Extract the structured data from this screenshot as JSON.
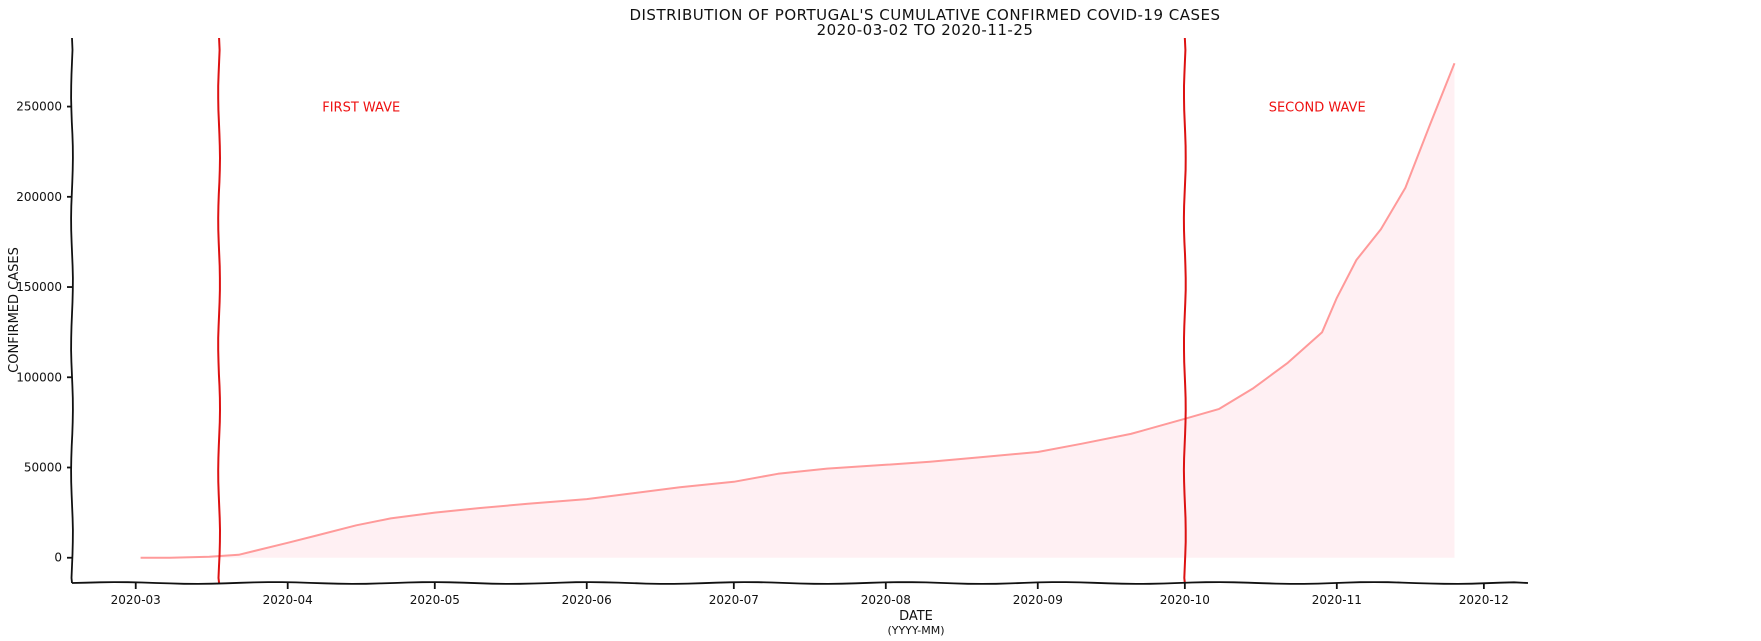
{
  "chart_data": {
    "type": "area",
    "title": "DISTRIBUTION OF PORTUGAL'S CUMULATIVE CONFIRMED COVID-19 CASES",
    "subtitle": "2020-03-02 TO 2020-11-25",
    "xlabel": "DATE",
    "xlabel_sub": "(YYYY-MM)",
    "ylabel": "CONFIRMED CASES",
    "xlim": [
      "2020-02-17",
      "2020-12-10"
    ],
    "ylim": [
      -14000,
      288000
    ],
    "x_ticks": [
      "2020-03-01",
      "2020-04-01",
      "2020-05-01",
      "2020-06-01",
      "2020-07-01",
      "2020-08-01",
      "2020-09-01",
      "2020-10-01",
      "2020-11-01",
      "2020-12-01"
    ],
    "x_tick_labels": [
      "2020-03",
      "2020-04",
      "2020-05",
      "2020-06",
      "2020-07",
      "2020-08",
      "2020-09",
      "2020-10",
      "2020-11",
      "2020-12"
    ],
    "y_ticks": [
      0,
      50000,
      100000,
      150000,
      200000,
      250000
    ],
    "y_tick_labels": [
      "0",
      "50000",
      "100000",
      "150000",
      "200000",
      "250000"
    ],
    "grid": false,
    "colors": {
      "line": "#ff9a9a",
      "fill": "#fff0f3",
      "wave_line": "#dd1111",
      "wave_text": "#ee1111",
      "axis": "#111111"
    },
    "series": [
      {
        "x": [
          "2020-03-02",
          "2020-03-08",
          "2020-03-16",
          "2020-03-22",
          "2020-03-26",
          "2020-04-01",
          "2020-04-07",
          "2020-04-15",
          "2020-04-22",
          "2020-05-01",
          "2020-05-10",
          "2020-05-20",
          "2020-06-01",
          "2020-06-10",
          "2020-06-20",
          "2020-07-01",
          "2020-07-10",
          "2020-07-20",
          "2020-08-01",
          "2020-08-10",
          "2020-08-20",
          "2020-09-01",
          "2020-09-10",
          "2020-09-20",
          "2020-10-01",
          "2020-10-08",
          "2020-10-15",
          "2020-10-22",
          "2020-10-29",
          "2020-11-01",
          "2020-11-05",
          "2020-11-10",
          "2020-11-15",
          "2020-11-20",
          "2020-11-25"
        ],
        "y": [
          0,
          20,
          500,
          1600,
          4300,
          8300,
          12400,
          18000,
          21800,
          25000,
          27500,
          29900,
          32500,
          35600,
          39100,
          42100,
          46500,
          49400,
          51500,
          53200,
          55600,
          58600,
          63200,
          68600,
          77000,
          82500,
          94000,
          108000,
          125000,
          144000,
          165000,
          182000,
          205000,
          240000,
          274000
        ]
      }
    ],
    "annotations": [
      {
        "x": "2020-03-18",
        "text": "FIRST WAVE",
        "text_x": "2020-04-16",
        "text_y": 250000
      },
      {
        "x": "2020-10-01",
        "text": "SECOND WAVE",
        "text_x": "2020-10-28",
        "text_y": 250000
      }
    ]
  }
}
